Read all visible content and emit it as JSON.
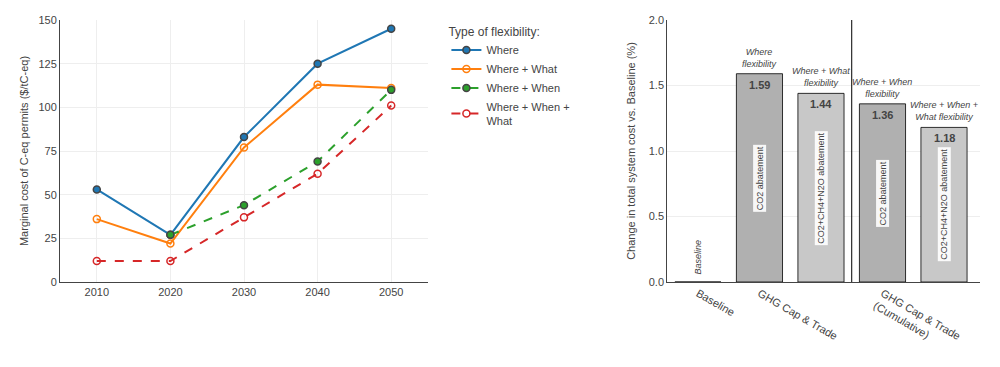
{
  "chart_data": [
    {
      "type": "line",
      "x": [
        2010,
        2020,
        2030,
        2040,
        2050
      ],
      "xlim": [
        2005,
        2055
      ],
      "xticks": [
        2010,
        2020,
        2030,
        2040,
        2050
      ],
      "ylim": [
        0,
        150
      ],
      "yticks": [
        0,
        25,
        50,
        75,
        100,
        125,
        150
      ],
      "ylabel": "Marginal cost of C-eq permits ($/tC-eq)",
      "grid": true,
      "legend": "right",
      "legend_title": "Type of flexibility:",
      "series": [
        {
          "name": "Where",
          "line_style": "solid",
          "marker": "filled",
          "values": [
            53,
            27,
            83,
            125,
            145
          ]
        },
        {
          "name": "Where + What",
          "line_style": "solid",
          "marker": "open",
          "values": [
            36,
            22,
            77,
            113,
            111
          ]
        },
        {
          "name": "Where + When",
          "line_style": "dashed",
          "marker": "filled",
          "values": [
            null,
            27,
            44,
            69,
            110
          ]
        },
        {
          "name": "Where + When +\nWhat",
          "line_style": "dashed",
          "marker": "open",
          "values": [
            12,
            12,
            37,
            62,
            101
          ]
        }
      ]
    },
    {
      "type": "bar",
      "categories": [
        "Baseline",
        "GHG Cap & Trade",
        null,
        "GHG Cap & Trade\n(Cumulative)",
        null
      ],
      "values": [
        0,
        1.59,
        1.44,
        1.36,
        1.18
      ],
      "value_labels": [
        null,
        "1.59",
        "1.44",
        "1.36",
        "1.18"
      ],
      "data_labels": true,
      "colors": [
        "#d0d0d0",
        "#b0b0b0",
        "#c8c8c8",
        "#b0b0b0",
        "#c8c8c8"
      ],
      "bar_texts": [
        "Baseline",
        "CO2 abatement",
        "CO2+CH4+N2O abatement",
        "CO2 abatement",
        "CO2+CH4+N2O abatement"
      ],
      "annotations": [
        null,
        "Where\nflexibility",
        "Where + What\nflexibility",
        "Where + When\nflexibility",
        "Where + When +\nWhat flexibility"
      ],
      "ylim": [
        0,
        2.0
      ],
      "yticks": [
        {
          "value": 0.0,
          "label": "0.0"
        },
        0.5,
        {
          "value": 1.0,
          "label": "1.0"
        },
        1.5,
        {
          "value": 2.0,
          "label": "2.0"
        }
      ],
      "ylabel": "Change in total system cost vs. Baseline (%)",
      "grid": "y"
    }
  ]
}
